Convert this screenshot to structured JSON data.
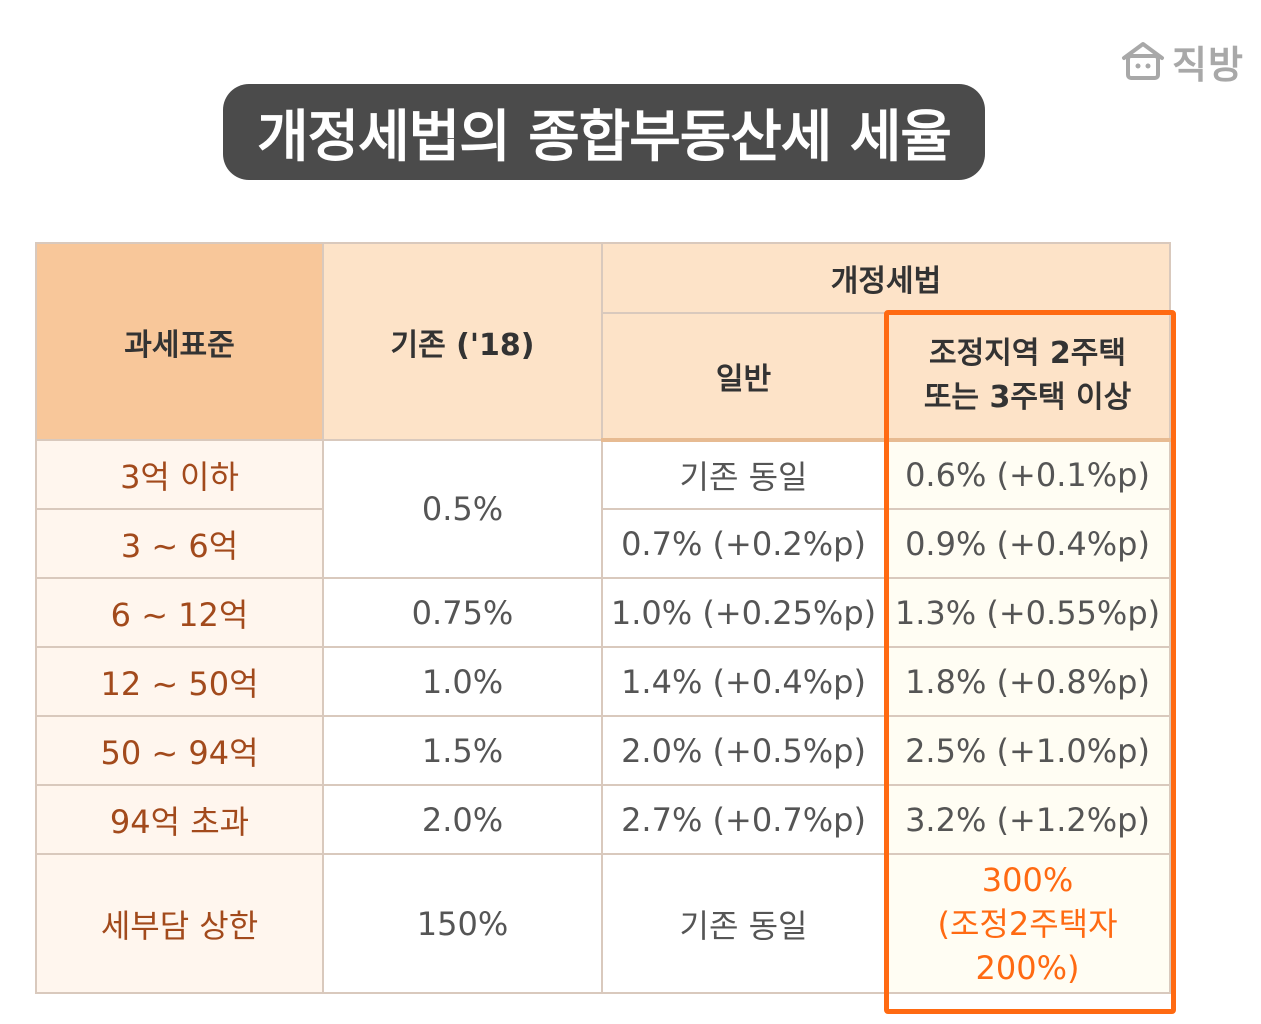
{
  "logo": {
    "text": "직방"
  },
  "title": "개정세법의 종합부동산세 세율",
  "table": {
    "headers": {
      "basis": "과세표준",
      "existing": "기존 ('18)",
      "revised": "개정세법",
      "general": "일반",
      "adjusted_line1": "조정지역 2주택",
      "adjusted_line2": "또는 3주택 이상"
    },
    "rows": [
      {
        "label": "3억 이하",
        "general": "기존 동일",
        "adjusted": "0.6% (+0.1%p)"
      },
      {
        "label": "3 ~ 6억",
        "general": "0.7% (+0.2%p)",
        "adjusted": "0.9% (+0.4%p)"
      },
      {
        "label": "6 ~ 12억",
        "existing": "0.75%",
        "general": "1.0% (+0.25%p)",
        "adjusted": "1.3% (+0.55%p)"
      },
      {
        "label": "12 ~ 50억",
        "existing": "1.0%",
        "general": "1.4% (+0.4%p)",
        "adjusted": "1.8% (+0.8%p)"
      },
      {
        "label": "50 ~ 94억",
        "existing": "1.5%",
        "general": "2.0% (+0.5%p)",
        "adjusted": "2.5% (+1.0%p)"
      },
      {
        "label": "94억 초과",
        "existing": "2.0%",
        "general": "2.7% (+0.7%p)",
        "adjusted": "3.2% (+1.2%p)"
      }
    ],
    "merged_existing_0_6": "0.5%",
    "cap": {
      "label": "세부담 상한",
      "existing": "150%",
      "general": "기존 동일",
      "adjusted_line1": "300%",
      "adjusted_line2": "(조정2주택자 200%)"
    }
  },
  "colors": {
    "highlight": "#ff6a12",
    "header_basis": "#f8c79a",
    "header_light": "#fde3c8",
    "label_text": "#a24a1c"
  }
}
